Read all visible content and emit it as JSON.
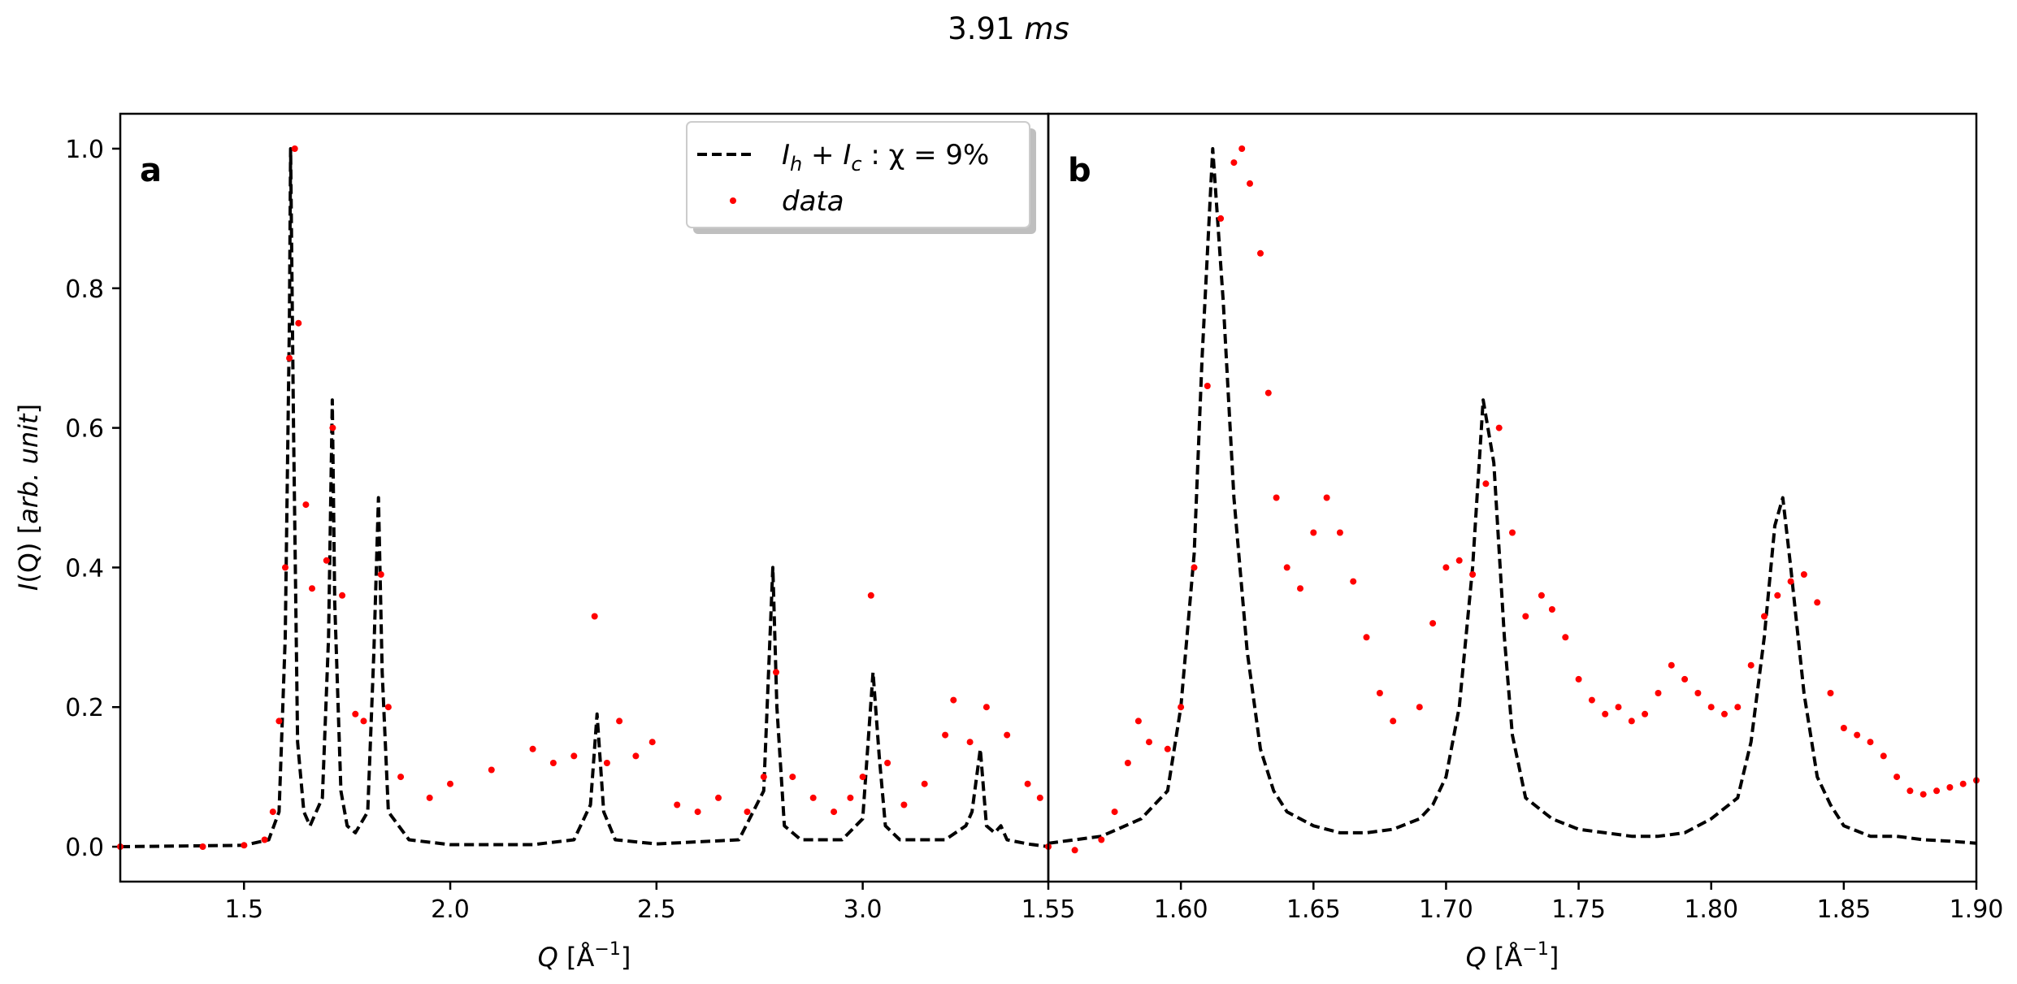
{
  "figure": {
    "title": "3.91 ms",
    "title_parts": {
      "number": "3.91 ",
      "unit": "ms"
    }
  },
  "chart_data": [
    {
      "panel": "a",
      "type": "line",
      "xlabel": "Q [Å⁻¹]",
      "ylabel": "I(Q) [arb. unit]",
      "xlim": [
        1.2,
        3.45
      ],
      "ylim": [
        -0.05,
        1.05
      ],
      "xticks": [
        "1.5",
        "2.0",
        "2.5",
        "3.0"
      ],
      "yticks": [
        "0.0",
        "0.2",
        "0.4",
        "0.6",
        "0.8",
        "1.0"
      ],
      "legend": {
        "placement": "top-right",
        "entries": [
          {
            "label": "I_h + I_c :  χ = 9%",
            "style": "dashed-line",
            "color": "#000000"
          },
          {
            "label": "data",
            "style": "dots",
            "color": "#ff0000"
          }
        ]
      },
      "series": [
        {
          "name": "I_h + I_c :  χ = 9%",
          "style": "dashed",
          "color": "#000000",
          "x": [
            1.2,
            1.5,
            1.56,
            1.585,
            1.6,
            1.61,
            1.613,
            1.62,
            1.63,
            1.645,
            1.66,
            1.69,
            1.705,
            1.714,
            1.72,
            1.735,
            1.75,
            1.77,
            1.8,
            1.815,
            1.826,
            1.835,
            1.85,
            1.9,
            2.0,
            2.2,
            2.3,
            2.34,
            2.356,
            2.372,
            2.4,
            2.5,
            2.7,
            2.76,
            2.782,
            2.792,
            2.81,
            2.85,
            2.95,
            3.0,
            3.025,
            3.04,
            3.055,
            3.09,
            3.2,
            3.25,
            3.265,
            3.285,
            3.3,
            3.32,
            3.335,
            3.35,
            3.4,
            3.45
          ],
          "y": [
            0.0,
            0.002,
            0.01,
            0.05,
            0.3,
            0.75,
            1.0,
            0.6,
            0.15,
            0.05,
            0.03,
            0.07,
            0.3,
            0.64,
            0.35,
            0.08,
            0.03,
            0.02,
            0.05,
            0.28,
            0.5,
            0.25,
            0.05,
            0.01,
            0.003,
            0.003,
            0.01,
            0.06,
            0.19,
            0.05,
            0.01,
            0.004,
            0.01,
            0.08,
            0.4,
            0.2,
            0.03,
            0.01,
            0.01,
            0.04,
            0.25,
            0.13,
            0.03,
            0.01,
            0.01,
            0.03,
            0.05,
            0.14,
            0.03,
            0.02,
            0.03,
            0.01,
            0.004,
            0.0
          ]
        },
        {
          "name": "data",
          "style": "dots",
          "color": "#ff0000",
          "x": [
            1.2,
            1.4,
            1.5,
            1.55,
            1.57,
            1.585,
            1.6,
            1.61,
            1.623,
            1.632,
            1.65,
            1.665,
            1.7,
            1.715,
            1.738,
            1.77,
            1.79,
            1.832,
            1.85,
            1.88,
            1.95,
            2.0,
            2.1,
            2.2,
            2.25,
            2.3,
            2.35,
            2.38,
            2.41,
            2.45,
            2.49,
            2.55,
            2.6,
            2.65,
            2.72,
            2.76,
            2.79,
            2.83,
            2.88,
            2.93,
            2.97,
            3.0,
            3.02,
            3.06,
            3.1,
            3.15,
            3.2,
            3.22,
            3.26,
            3.3,
            3.35,
            3.4,
            3.43
          ],
          "y": [
            0.0,
            0.0,
            0.002,
            0.01,
            0.05,
            0.18,
            0.4,
            0.7,
            1.0,
            0.75,
            0.49,
            0.37,
            0.41,
            0.6,
            0.36,
            0.19,
            0.18,
            0.39,
            0.2,
            0.1,
            0.07,
            0.09,
            0.11,
            0.14,
            0.12,
            0.13,
            0.33,
            0.12,
            0.18,
            0.13,
            0.15,
            0.06,
            0.05,
            0.07,
            0.05,
            0.1,
            0.25,
            0.1,
            0.07,
            0.05,
            0.07,
            0.1,
            0.36,
            0.12,
            0.06,
            0.09,
            0.16,
            0.21,
            0.15,
            0.2,
            0.16,
            0.09,
            0.07
          ]
        }
      ]
    },
    {
      "panel": "b",
      "type": "line",
      "xlabel": "Q [Å⁻¹]",
      "ylabel": "",
      "xlim": [
        1.55,
        1.9
      ],
      "ylim": [
        -0.05,
        1.05
      ],
      "xticks": [
        "1.55",
        "1.60",
        "1.65",
        "1.70",
        "1.75",
        "1.80",
        "1.85",
        "1.90"
      ],
      "series": [
        {
          "name": "I_h + I_c :  χ = 9%",
          "style": "dashed",
          "color": "#000000",
          "x": [
            1.55,
            1.57,
            1.585,
            1.595,
            1.6,
            1.605,
            1.608,
            1.612,
            1.616,
            1.62,
            1.625,
            1.63,
            1.635,
            1.64,
            1.65,
            1.66,
            1.67,
            1.68,
            1.69,
            1.695,
            1.7,
            1.705,
            1.71,
            1.714,
            1.718,
            1.722,
            1.725,
            1.73,
            1.74,
            1.75,
            1.76,
            1.77,
            1.78,
            1.79,
            1.8,
            1.81,
            1.815,
            1.82,
            1.824,
            1.827,
            1.83,
            1.835,
            1.84,
            1.845,
            1.85,
            1.86,
            1.87,
            1.88,
            1.89,
            1.9
          ],
          "y": [
            0.005,
            0.015,
            0.04,
            0.08,
            0.2,
            0.42,
            0.7,
            1.0,
            0.78,
            0.5,
            0.28,
            0.14,
            0.08,
            0.05,
            0.03,
            0.02,
            0.02,
            0.025,
            0.04,
            0.06,
            0.1,
            0.2,
            0.4,
            0.64,
            0.55,
            0.3,
            0.16,
            0.07,
            0.04,
            0.025,
            0.02,
            0.015,
            0.015,
            0.02,
            0.04,
            0.07,
            0.15,
            0.3,
            0.46,
            0.5,
            0.4,
            0.22,
            0.1,
            0.06,
            0.03,
            0.015,
            0.015,
            0.01,
            0.008,
            0.005
          ]
        },
        {
          "name": "data",
          "style": "dots",
          "color": "#ff0000",
          "x": [
            1.55,
            1.56,
            1.57,
            1.575,
            1.58,
            1.584,
            1.588,
            1.595,
            1.6,
            1.605,
            1.61,
            1.615,
            1.62,
            1.623,
            1.626,
            1.63,
            1.633,
            1.636,
            1.64,
            1.645,
            1.65,
            1.655,
            1.66,
            1.665,
            1.67,
            1.675,
            1.68,
            1.69,
            1.695,
            1.7,
            1.705,
            1.71,
            1.715,
            1.72,
            1.725,
            1.73,
            1.736,
            1.74,
            1.745,
            1.75,
            1.755,
            1.76,
            1.765,
            1.77,
            1.775,
            1.78,
            1.785,
            1.79,
            1.795,
            1.8,
            1.805,
            1.81,
            1.815,
            1.82,
            1.825,
            1.83,
            1.835,
            1.84,
            1.845,
            1.85,
            1.855,
            1.86,
            1.865,
            1.87,
            1.875,
            1.88,
            1.885,
            1.89,
            1.895,
            1.9
          ],
          "y": [
            0.0,
            -0.005,
            0.01,
            0.05,
            0.12,
            0.18,
            0.15,
            0.14,
            0.2,
            0.4,
            0.66,
            0.9,
            0.98,
            1.0,
            0.95,
            0.85,
            0.65,
            0.5,
            0.4,
            0.37,
            0.45,
            0.5,
            0.45,
            0.38,
            0.3,
            0.22,
            0.18,
            0.2,
            0.32,
            0.4,
            0.41,
            0.39,
            0.52,
            0.6,
            0.45,
            0.33,
            0.36,
            0.34,
            0.3,
            0.24,
            0.21,
            0.19,
            0.2,
            0.18,
            0.19,
            0.22,
            0.26,
            0.24,
            0.22,
            0.2,
            0.19,
            0.2,
            0.26,
            0.33,
            0.36,
            0.38,
            0.39,
            0.35,
            0.22,
            0.17,
            0.16,
            0.15,
            0.13,
            0.1,
            0.08,
            0.075,
            0.08,
            0.085,
            0.09,
            0.095
          ]
        }
      ]
    }
  ],
  "panel_labels": {
    "a": "a",
    "b": "b"
  },
  "legend_text": {
    "I_symbol": "I",
    "h_sub": "h",
    "plus": " + ",
    "c_sub": "c",
    "rest": " :  χ = 9%",
    "data": "data"
  },
  "xaxis_label": {
    "q": "Q",
    "unit_pre": " [Å",
    "exp": "−1",
    "unit_post": "]"
  },
  "yaxis_label": {
    "i": "I",
    "q": "(Q) [",
    "unit": "arb. unit",
    "close": "]"
  },
  "colors": {
    "model": "#000000",
    "data": "#ff0000",
    "axes": "#000000"
  }
}
